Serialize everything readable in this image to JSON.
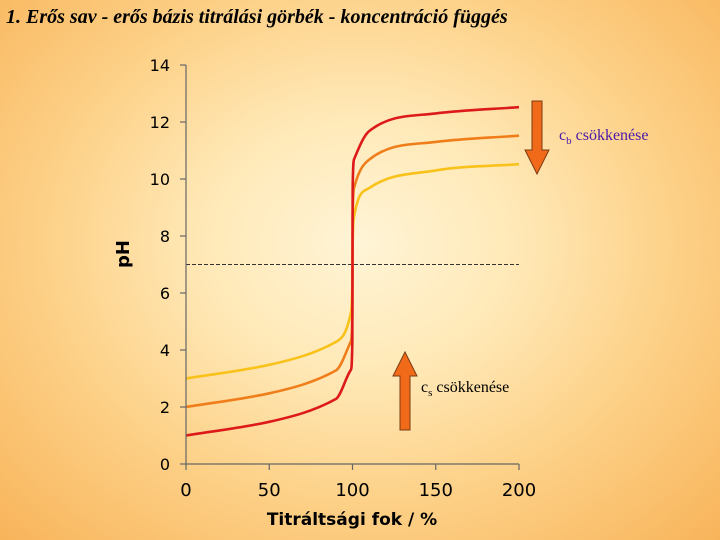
{
  "slide": {
    "title": "1. Erős sav - erős bázis titrálási görbék - koncentráció függés"
  },
  "chart_data": {
    "type": "line",
    "title": "",
    "xlabel": "Titráltsági fok / %",
    "ylabel": "pH",
    "xlim": [
      0,
      200
    ],
    "ylim": [
      0,
      14
    ],
    "xticks": [
      "0",
      "50",
      "100",
      "150",
      "200"
    ],
    "yticks": [
      "0",
      "2",
      "4",
      "6",
      "8",
      "10",
      "12",
      "14"
    ],
    "grid": false,
    "reference_line": {
      "y": 7,
      "style": "dashed",
      "x_range": [
        0,
        200
      ]
    },
    "series": [
      {
        "color": "#dd1a1a",
        "x": [
          0,
          50,
          90,
          99,
          99.9,
          100,
          100.1,
          101,
          110,
          150,
          200
        ],
        "y": [
          1.0,
          1.48,
          2.28,
          3.3,
          4.3,
          7.0,
          9.7,
          10.7,
          11.68,
          12.3,
          12.52
        ]
      },
      {
        "color": "#ef7d1a",
        "x": [
          0,
          50,
          90,
          99,
          99.9,
          100,
          100.1,
          101,
          110,
          150,
          200
        ],
        "y": [
          2.0,
          2.48,
          3.28,
          4.3,
          5.3,
          7.0,
          8.7,
          9.7,
          10.68,
          11.3,
          11.52
        ]
      },
      {
        "color": "#f8c21a",
        "x": [
          0,
          50,
          90,
          99,
          99.9,
          100,
          100.1,
          101,
          110,
          150,
          200
        ],
        "y": [
          3.0,
          3.48,
          4.28,
          5.3,
          6.3,
          7.0,
          7.7,
          8.7,
          9.68,
          10.3,
          10.52
        ]
      }
    ],
    "annotations": [
      {
        "name": "cb",
        "symbol": "c",
        "subscript": "b",
        "text": " csökkenése",
        "text_color": "#4a1aa8",
        "arrow_direction": "down",
        "arrow_fill": "#f06a1a"
      },
      {
        "name": "cs",
        "symbol": "c",
        "subscript": "s",
        "text": " csökkenése",
        "text_color": "#000000",
        "arrow_direction": "up",
        "arrow_fill": "#f06a1a"
      }
    ]
  }
}
